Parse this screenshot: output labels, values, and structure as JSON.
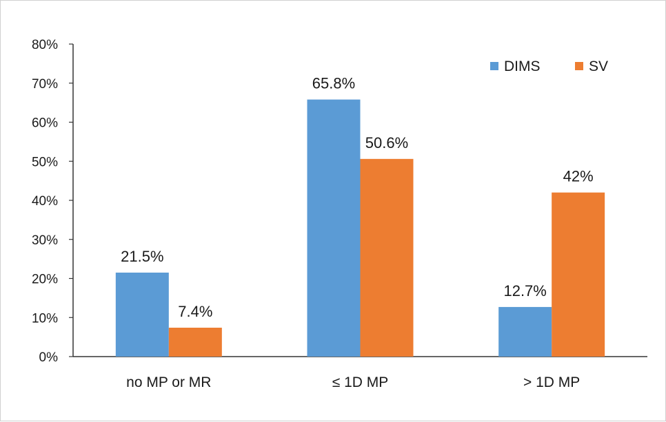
{
  "chart_data": {
    "type": "bar",
    "title": "",
    "xlabel": "",
    "ylabel": "",
    "categories": [
      "no MP or MR",
      "≤ 1D MP",
      "> 1D MP"
    ],
    "series": [
      {
        "name": "DIMS",
        "values": [
          21.5,
          65.8,
          12.7
        ],
        "labels": [
          "21.5%",
          "65.8%",
          "12.7%"
        ],
        "color": "#5b9bd5"
      },
      {
        "name": "SV",
        "values": [
          7.4,
          50.6,
          42
        ],
        "labels": [
          "7.4%",
          "50.6%",
          "42%"
        ],
        "color": "#ed7d31"
      }
    ],
    "ylim": [
      0,
      80
    ],
    "yticks": [
      0,
      10,
      20,
      30,
      40,
      50,
      60,
      70,
      80
    ],
    "ytick_labels": [
      "0%",
      "10%",
      "20%",
      "30%",
      "40%",
      "50%",
      "60%",
      "70%",
      "80%"
    ],
    "grid": false,
    "legend_position": "top-right"
  }
}
